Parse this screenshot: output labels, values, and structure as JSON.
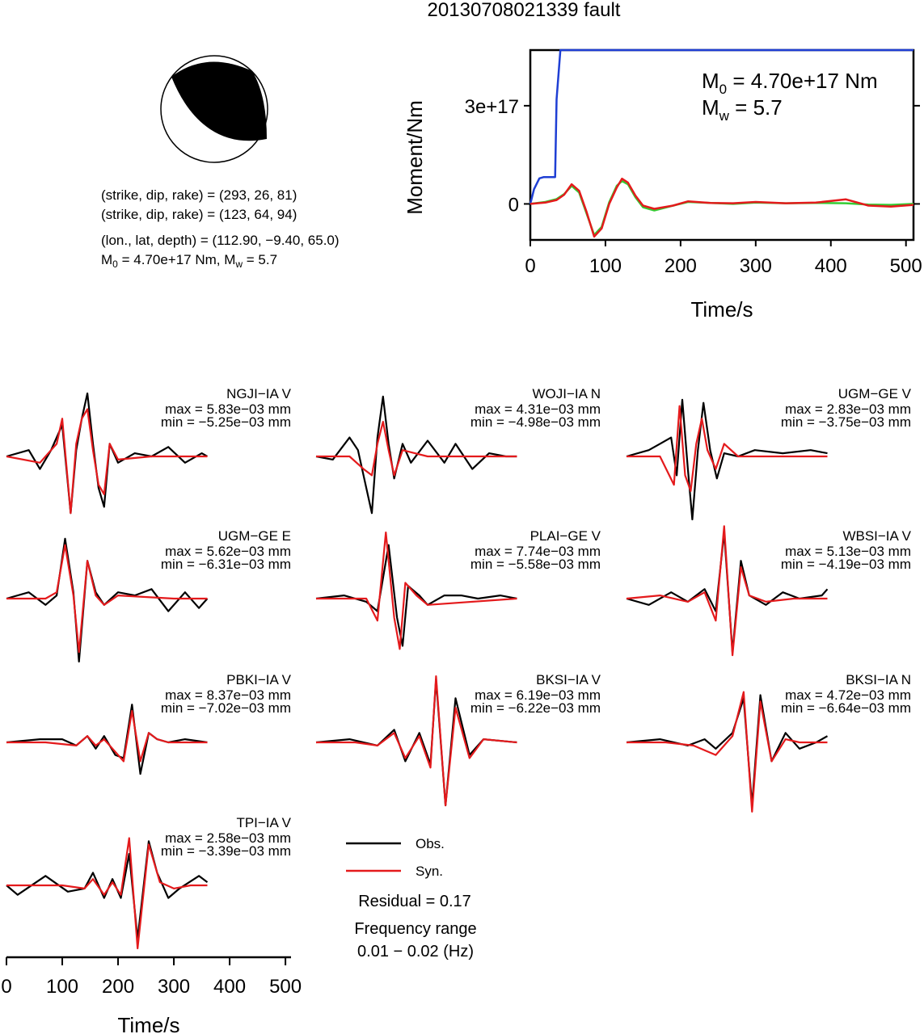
{
  "title": "20130708021339 fault",
  "colors": {
    "observed": "#000000",
    "synthetic": "#e41a1c",
    "moment": "#1f3fd4",
    "moment_rate_syn": "#33cc33",
    "beachball_fill": "#000000"
  },
  "mechanism": {
    "plane1": "(strike, dip, rake) = (293, 26, 81)",
    "plane2": "(strike, dip, rake) = (123, 64, 94)",
    "location": "(lon., lat, depth) = (112.90, −9.40, 65.0)",
    "moment_text": "M",
    "moment_sub": "0",
    "moment_value": " = 4.70e+17 Nm, M",
    "mw_sub": "w",
    "mw_value": " = 5.7"
  },
  "chart_data": [
    {
      "type": "line",
      "name": "source-time-function",
      "xlabel": "Time/s",
      "ylabel": "Moment/Nm",
      "xlim": [
        0,
        510
      ],
      "ylim": [
        -1.1e+17,
        4.7e+17
      ],
      "xticks": [
        0,
        100,
        200,
        300,
        400,
        500
      ],
      "xtick_labels": [
        "0",
        "100",
        "200",
        "300",
        "400",
        "500"
      ],
      "yticks": [
        0,
        3e+17
      ],
      "ytick_labels": [
        "0",
        "3e+17"
      ],
      "annotation": {
        "m0_label": "M",
        "m0_sub": "0",
        "m0_value": " = 4.70e+17 Nm",
        "mw_label": "M",
        "mw_sub": "w",
        "mw_value": " = 5.7"
      },
      "series": [
        {
          "x": [
            0,
            5,
            12,
            18,
            33,
            35,
            40,
            510
          ],
          "y": [
            0,
            4.5e+16,
            7.8e+16,
            8.2e+16,
            8.2e+16,
            3.2e+17,
            4.7e+17,
            4.7e+17
          ]
        },
        {
          "x": [
            0,
            20,
            35,
            45,
            55,
            65,
            75,
            85,
            95,
            105,
            115,
            122,
            130,
            140,
            150,
            165,
            190,
            210,
            240,
            270,
            300,
            340,
            380,
            420,
            450,
            480,
            510
          ],
          "y": [
            0,
            6000000000000000.0,
            1.5e+16,
            3e+16,
            5.5e+16,
            3.5e+16,
            -3e+16,
            -9.5e+16,
            -7e+16,
            5000000000000000.0,
            5.5e+16,
            7e+16,
            6e+16,
            2e+16,
            -1e+16,
            -2e+16,
            -5000000000000000.0,
            6000000000000000.0,
            3000000000000000.0,
            0,
            4000000000000000.0,
            2000000000000000.0,
            3000000000000000.0,
            2000000000000000.0,
            -2000000000000000.0,
            -3000000000000000.0,
            0
          ]
        },
        {
          "x": [
            0,
            20,
            35,
            45,
            55,
            65,
            75,
            85,
            95,
            105,
            115,
            122,
            130,
            140,
            150,
            165,
            190,
            210,
            240,
            270,
            300,
            340,
            380,
            420,
            450,
            480,
            510
          ],
          "y": [
            0,
            4000000000000000.0,
            1.2e+16,
            2.8e+16,
            6e+16,
            4e+16,
            -2.5e+16,
            -1e+17,
            -7.5e+16,
            0,
            5e+16,
            7.7e+16,
            6.5e+16,
            2.5e+16,
            -5000000000000000.0,
            -1.5e+16,
            -5000000000000000.0,
            8000000000000000.0,
            3000000000000000.0,
            2000000000000000.0,
            6000000000000000.0,
            2000000000000000.0,
            4000000000000000.0,
            1.4e+16,
            -5000000000000000.0,
            -8000000000000000.0,
            -3000000000000000.0
          ]
        }
      ]
    },
    {
      "type": "line",
      "name": "waveform-comparison",
      "xlabel": "Time/s",
      "xlim": [
        0,
        510
      ],
      "xticks": [
        0,
        100,
        200,
        300,
        400,
        500
      ],
      "xtick_labels": [
        "0",
        "100",
        "200",
        "300",
        "400",
        "500"
      ],
      "legend": {
        "obs": "Obs.",
        "syn": "Syn.",
        "residual": "Residual = 0.17",
        "freq_title": "Frequency range",
        "freq_value": "0.01 − 0.02 (Hz)"
      },
      "stations": [
        {
          "label": "NGJI−IA V",
          "max": "max = 5.83e−03 mm",
          "min": "min = −5.25e−03 mm",
          "obs": {
            "x": [
              0,
              40,
              60,
              80,
              100,
              115,
              125,
              135,
              145,
              155,
              165,
              175,
              185,
              200,
              230,
              260,
              290,
              320,
              350,
              360
            ],
            "y": [
              0,
              0.1,
              -0.2,
              0.1,
              0.5,
              -0.9,
              0.1,
              0.6,
              1.0,
              0.2,
              -0.5,
              -0.8,
              0.2,
              -0.1,
              0.05,
              0,
              0.15,
              -0.1,
              0.05,
              0
            ]
          },
          "syn": {
            "x": [
              0,
              60,
              90,
              100,
              115,
              125,
              135,
              145,
              155,
              165,
              175,
              185,
              200,
              260,
              360
            ],
            "y": [
              0,
              -0.1,
              0.2,
              0.6,
              -0.9,
              0.2,
              0.6,
              0.75,
              0.1,
              -0.45,
              -0.6,
              0.2,
              -0.05,
              0,
              0
            ]
          }
        },
        {
          "label": "WOJI−IA N",
          "max": "max = 4.31e−03 mm",
          "min": "min = −4.98e−03 mm",
          "obs": {
            "x": [
              0,
              30,
              60,
              75,
              90,
              100,
              110,
              120,
              130,
              140,
              155,
              170,
              200,
              230,
              250,
              280,
              310,
              340,
              360
            ],
            "y": [
              0,
              -0.05,
              0.3,
              0.1,
              -0.5,
              -0.9,
              0.3,
              0.95,
              0.2,
              -0.35,
              0.2,
              -0.1,
              0.25,
              -0.1,
              0.2,
              -0.2,
              0.05,
              0,
              0
            ]
          },
          "syn": {
            "x": [
              0,
              60,
              85,
              100,
              110,
              120,
              130,
              140,
              155,
              200,
              360
            ],
            "y": [
              0,
              0,
              -0.2,
              -0.3,
              0.2,
              0.55,
              0.1,
              -0.3,
              0.1,
              0,
              0
            ]
          }
        },
        {
          "label": "UGM−GE V",
          "max": "max = 2.83e−03 mm",
          "min": "min = −3.75e−03 mm",
          "obs": {
            "x": [
              0,
              40,
              60,
              80,
              90,
              100,
              110,
              118,
              128,
              138,
              150,
              162,
              175,
              200,
              230,
              280,
              330,
              360
            ],
            "y": [
              0,
              0.1,
              0.2,
              0.3,
              -0.3,
              0.9,
              -0.2,
              -1.0,
              0.1,
              0.85,
              0.1,
              -0.35,
              0.05,
              0,
              0.1,
              0.05,
              0.1,
              0.05
            ]
          },
          "syn": {
            "x": [
              0,
              60,
              85,
              95,
              105,
              115,
              125,
              135,
              145,
              160,
              175,
              200,
              360
            ],
            "y": [
              0,
              0,
              -0.45,
              0.8,
              -0.3,
              -0.55,
              0.2,
              0.6,
              0.1,
              -0.2,
              0.2,
              0,
              0
            ]
          }
        },
        {
          "label": "UGM−GE E",
          "max": "max = 5.62e−03 mm",
          "min": "min = −6.31e−03 mm",
          "obs": {
            "x": [
              0,
              40,
              70,
              90,
              105,
              120,
              130,
              145,
              160,
              175,
              200,
              230,
              260,
              290,
              320,
              345,
              360
            ],
            "y": [
              0,
              0.1,
              -0.1,
              0.05,
              0.95,
              0.1,
              -1.0,
              0.6,
              0.1,
              -0.1,
              0.1,
              0.05,
              0.15,
              -0.2,
              0.1,
              -0.15,
              0
            ]
          },
          "syn": {
            "x": [
              0,
              70,
              90,
              105,
              120,
              130,
              145,
              160,
              175,
              200,
              300,
              360
            ],
            "y": [
              0,
              0,
              0.1,
              0.85,
              0.05,
              -0.85,
              0.6,
              0.05,
              -0.1,
              0.05,
              0,
              0
            ]
          }
        },
        {
          "label": "PLAI−GE V",
          "max": "max = 7.74e−03 mm",
          "min": "min = −5.58e−03 mm",
          "obs": {
            "x": [
              0,
              50,
              90,
              110,
              130,
              145,
              155,
              165,
              185,
              200,
              230,
              260,
              290,
              330,
              360
            ],
            "y": [
              0,
              0.05,
              -0.05,
              -0.2,
              0.85,
              -0.3,
              -0.75,
              0.2,
              0.05,
              -0.1,
              0.05,
              0.05,
              0,
              0.05,
              0
            ]
          },
          "syn": {
            "x": [
              0,
              90,
              110,
              125,
              140,
              150,
              160,
              180,
              200,
              360
            ],
            "y": [
              0,
              0,
              -0.35,
              1.05,
              -0.3,
              -0.8,
              0.25,
              0.05,
              -0.1,
              0
            ]
          }
        },
        {
          "label": "WBSI−IA V",
          "max": "max = 5.13e−03 mm",
          "min": "min = −4.19e−03 mm",
          "obs": {
            "x": [
              0,
              40,
              80,
              110,
              140,
              160,
              175,
              190,
              205,
              220,
              250,
              280,
              310,
              350,
              360
            ],
            "y": [
              0,
              -0.1,
              0.1,
              -0.05,
              0.15,
              -0.2,
              1.05,
              -0.85,
              0.6,
              0.05,
              -0.1,
              0.1,
              0,
              0.05,
              0.15
            ]
          },
          "syn": {
            "x": [
              0,
              60,
              110,
              140,
              160,
              175,
              190,
              205,
              220,
              250,
              300,
              360
            ],
            "y": [
              0,
              0.05,
              -0.05,
              0.1,
              -0.35,
              1.15,
              -0.9,
              0.5,
              0.05,
              -0.05,
              0,
              0
            ]
          }
        },
        {
          "label": "PBKI−IA V",
          "max": "max = 8.37e−03 mm",
          "min": "min = −7.02e−03 mm",
          "obs": {
            "x": [
              0,
              60,
              100,
              125,
              145,
              160,
              175,
              195,
              210,
              225,
              240,
              255,
              270,
              290,
              320,
              360
            ],
            "y": [
              0,
              0.05,
              0.05,
              -0.05,
              0.1,
              -0.1,
              0.1,
              -0.2,
              -0.25,
              0.6,
              -0.5,
              0.15,
              0.05,
              0,
              0.05,
              0
            ]
          },
          "syn": {
            "x": [
              0,
              70,
              125,
              145,
              160,
              175,
              195,
              210,
              225,
              240,
              255,
              270,
              290,
              360
            ],
            "y": [
              0,
              0,
              -0.05,
              0.1,
              -0.05,
              0.05,
              -0.15,
              -0.3,
              0.5,
              -0.3,
              0.15,
              0.05,
              0,
              0
            ]
          }
        },
        {
          "label": "BKSI−IA V",
          "max": "max = 6.19e−03 mm",
          "min": "min = −6.22e−03 mm",
          "obs": {
            "x": [
              0,
              60,
              110,
              140,
              160,
              185,
              205,
              215,
              232,
              250,
              275,
              300,
              360
            ],
            "y": [
              0,
              0.05,
              -0.05,
              0.2,
              -0.3,
              0.15,
              -0.35,
              1.0,
              -1.0,
              0.7,
              -0.2,
              0.05,
              0
            ]
          },
          "syn": {
            "x": [
              0,
              70,
              110,
              140,
              160,
              185,
              205,
              215,
              232,
              250,
              275,
              300,
              360
            ],
            "y": [
              0,
              0,
              -0.05,
              0.15,
              -0.25,
              0.1,
              -0.4,
              1.05,
              -1.0,
              0.55,
              -0.25,
              0.05,
              0
            ]
          }
        },
        {
          "label": "BKSI−IA N",
          "max": "max = 4.72e−03 mm",
          "min": "min = −6.64e−03 mm",
          "obs": {
            "x": [
              0,
              60,
              110,
              140,
              160,
              190,
              210,
              225,
              240,
              260,
              285,
              310,
              340,
              360
            ],
            "y": [
              0,
              0.05,
              -0.05,
              0.05,
              -0.1,
              0.15,
              0.7,
              -1.0,
              0.75,
              -0.3,
              0.15,
              -0.1,
              0,
              0.1
            ]
          },
          "syn": {
            "x": [
              0,
              70,
              120,
              160,
              190,
              210,
              225,
              240,
              260,
              285,
              310,
              360
            ],
            "y": [
              0,
              0,
              -0.05,
              -0.2,
              0.1,
              0.8,
              -1.1,
              0.65,
              -0.3,
              0.05,
              0,
              0
            ]
          }
        },
        {
          "label": "TPI−IA V",
          "max": "max = 2.58e−03 mm",
          "min": "min = −3.39e−03 mm",
          "obs": {
            "x": [
              0,
              20,
              70,
              110,
              140,
              155,
              175,
              190,
              205,
              220,
              235,
              255,
              270,
              290,
              310,
              345,
              360
            ],
            "y": [
              0,
              -0.15,
              0.15,
              -0.1,
              -0.05,
              0.2,
              -0.2,
              0.1,
              -0.2,
              0.5,
              -0.85,
              0.7,
              0.2,
              -0.2,
              -0.05,
              0.15,
              0.05
            ]
          },
          "syn": {
            "x": [
              0,
              100,
              140,
              155,
              175,
              190,
              205,
              220,
              235,
              255,
              275,
              300,
              330,
              360
            ],
            "y": [
              0,
              0,
              -0.05,
              0.1,
              -0.15,
              0.05,
              -0.15,
              0.75,
              -1.0,
              0.65,
              0.05,
              -0.05,
              0,
              0
            ]
          }
        }
      ]
    }
  ]
}
